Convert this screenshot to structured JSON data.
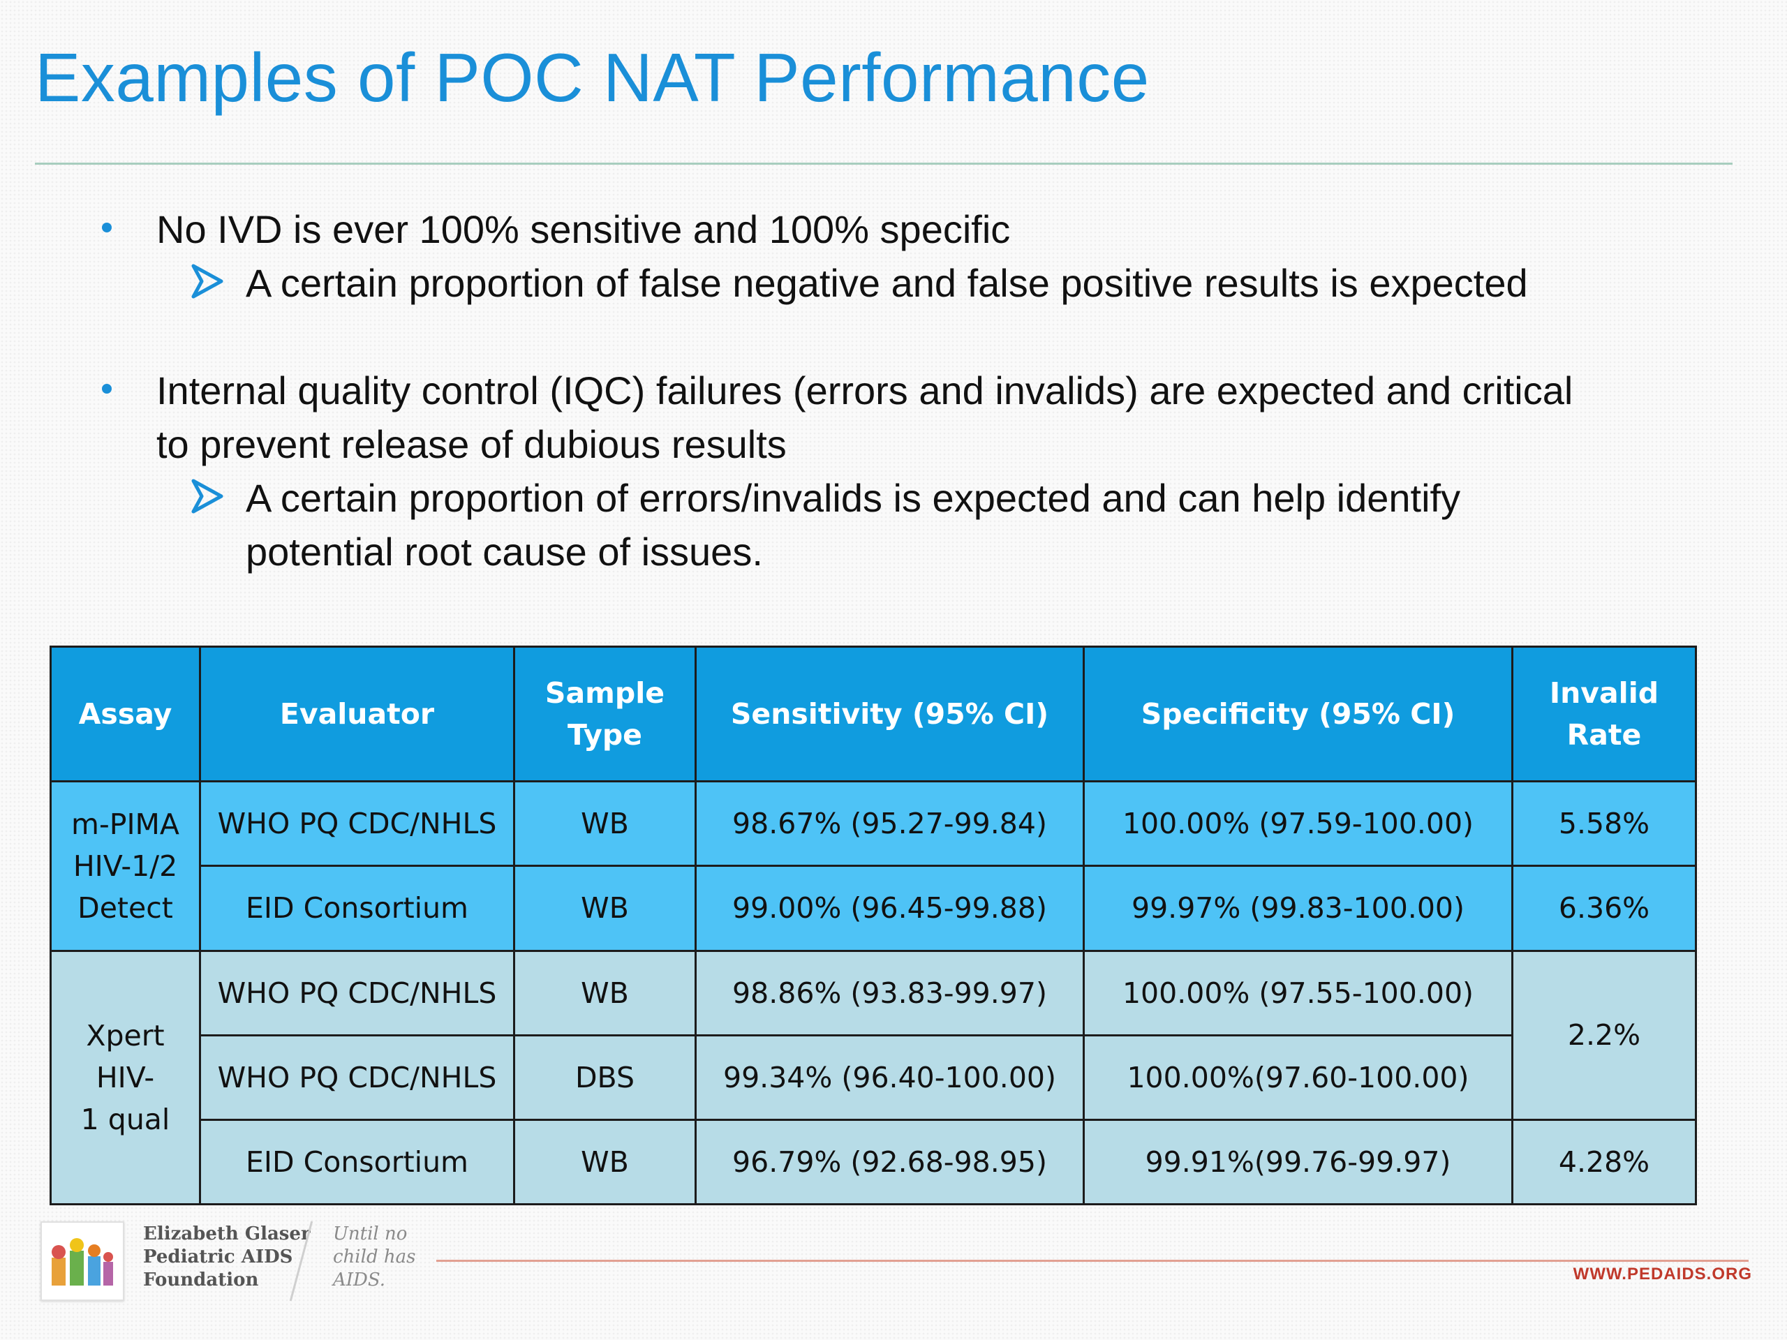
{
  "slide": {
    "title": "Examples of POC NAT Performance"
  },
  "bullets": {
    "b1": "No IVD is ever 100% sensitive and 100% specific",
    "b1_sub": "A certain proportion of false negative and false positive results is expected",
    "b2_line1": "Internal quality control (IQC) failures (errors and invalids) are expected and critical",
    "b2_line2": "to prevent release of dubious results",
    "b2_sub_line1": "A certain proportion of errors/invalids is expected and can help identify",
    "b2_sub_line2": "potential root cause of issues."
  },
  "table": {
    "headers": {
      "assay": "Assay",
      "evaluator": "Evaluator",
      "sample_type_1": "Sample",
      "sample_type_2": "Type",
      "sensitivity": "Sensitivity (95% CI)",
      "specificity": "Specificity (95% CI)",
      "invalid_1": "Invalid",
      "invalid_2": "Rate"
    },
    "groups": [
      {
        "assay_lines": [
          "m-PIMA",
          "HIV-1/2",
          "Detect"
        ],
        "rows": [
          {
            "evaluator": "WHO PQ CDC/NHLS",
            "sample": "WB",
            "sensitivity": "98.67% (95.27-99.84)",
            "specificity": "100.00% (97.59-100.00)",
            "invalid": "5.58%"
          },
          {
            "evaluator": "EID Consortium",
            "sample": "WB",
            "sensitivity": "99.00% (96.45-99.88)",
            "specificity": "99.97% (99.83-100.00)",
            "invalid": "6.36%"
          }
        ]
      },
      {
        "assay_lines": [
          "Xpert HIV-",
          "1 qual"
        ],
        "rows": [
          {
            "evaluator": "WHO PQ CDC/NHLS",
            "sample": "WB",
            "sensitivity": "98.86% (93.83-99.97)",
            "specificity": "100.00% (97.55-100.00)"
          },
          {
            "evaluator": "WHO PQ CDC/NHLS",
            "sample": "DBS",
            "sensitivity": "99.34% (96.40-100.00)",
            "specificity": "100.00%(97.60-100.00)"
          },
          {
            "evaluator": "EID Consortium",
            "sample": "WB",
            "sensitivity": "96.79% (92.68-98.95)",
            "specificity": "99.91%(99.76-99.97)",
            "invalid": "4.28%"
          }
        ],
        "merged_invalid": "2.2%"
      }
    ]
  },
  "footer": {
    "org_line1": "Elizabeth Glaser",
    "org_line2": "Pediatric AIDS",
    "org_line3": "Foundation",
    "tag_line1": "Until no",
    "tag_line2": "child has",
    "tag_line3": "AIDS.",
    "url": "WWW.PEDAIDS.ORG"
  },
  "colors": {
    "title_blue": "#1a8fd8",
    "header_blue": "#109cdf",
    "group1_fill": "#4ec3f6",
    "group2_fill": "#b7dce7",
    "footer_red": "#c0392b"
  },
  "icons": [
    "bullet-dot-icon",
    "arrow-bullet-icon",
    "foundation-logo-icon"
  ]
}
